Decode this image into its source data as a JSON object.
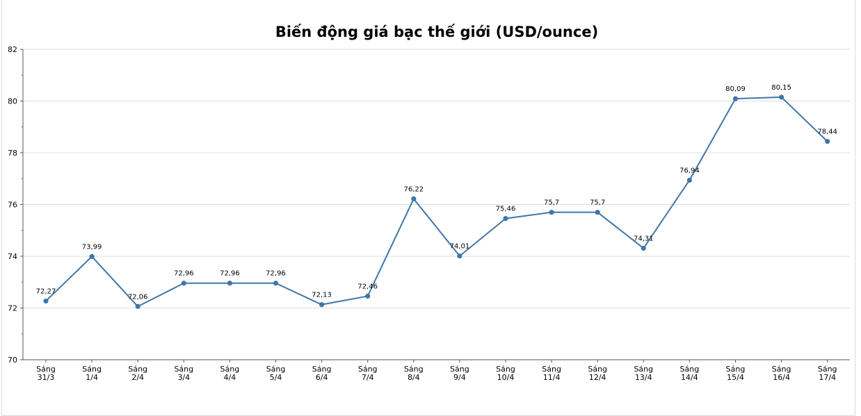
{
  "chart_data": {
    "type": "line",
    "title": "Biến động giá bạc thế giới (USD/ounce)",
    "xlabel": "",
    "ylabel": "",
    "ylim": [
      70,
      82
    ],
    "yticks": [
      70,
      72,
      74,
      76,
      78,
      80,
      82
    ],
    "grid": true,
    "legend": "none",
    "line_color": "#3f76a8",
    "categories": [
      [
        "Sáng",
        "31/3"
      ],
      [
        "Sáng",
        "1/4"
      ],
      [
        "Sáng",
        "2/4"
      ],
      [
        "Sáng",
        "3/4"
      ],
      [
        "Sáng",
        "4/4"
      ],
      [
        "Sáng",
        "5/4"
      ],
      [
        "Sáng",
        "6/4"
      ],
      [
        "Sáng",
        "7/4"
      ],
      [
        "Sáng",
        "8/4"
      ],
      [
        "Sáng",
        "9/4"
      ],
      [
        "Sáng",
        "10/4"
      ],
      [
        "Sáng",
        "11/4"
      ],
      [
        "Sáng",
        "12/4"
      ],
      [
        "Sáng",
        "13/4"
      ],
      [
        "Sáng",
        "14/4"
      ],
      [
        "Sáng",
        "15/4"
      ],
      [
        "Sáng",
        "16/4"
      ],
      [
        "Sáng",
        "17/4"
      ]
    ],
    "values": [
      72.27,
      73.99,
      72.06,
      72.96,
      72.96,
      72.96,
      72.13,
      72.46,
      76.22,
      74.01,
      75.46,
      75.7,
      75.7,
      74.31,
      76.94,
      80.09,
      80.15,
      78.44
    ],
    "data_labels": [
      "72,27",
      "73,99",
      "72,06",
      "72,96",
      "72,96",
      "72,96",
      "72,13",
      "72,46",
      "76,22",
      "74,01",
      "75,46",
      "75,7",
      "75,7",
      "74,31",
      "76,94",
      "80,09",
      "80,15",
      "78,44"
    ]
  }
}
